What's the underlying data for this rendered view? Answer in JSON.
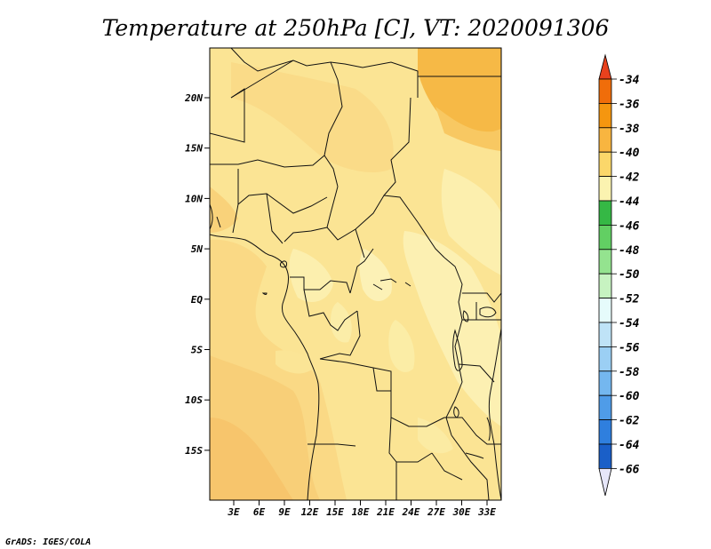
{
  "title": "Temperature at 250hPa [C], VT: 2020091306",
  "footer": "GrADS: IGES/COLA",
  "map": {
    "lat_labels": [
      "20N",
      "15N",
      "10N",
      "5N",
      "EQ",
      "5S",
      "10S",
      "15S"
    ],
    "lon_labels": [
      "3E",
      "6E",
      "9E",
      "12E",
      "15E",
      "18E",
      "21E",
      "24E",
      "27E",
      "30E",
      "33E"
    ]
  },
  "colorbar": {
    "levels": [
      "-34",
      "-36",
      "-38",
      "-40",
      "-42",
      "-44",
      "-46",
      "-48",
      "-50",
      "-52",
      "-54",
      "-56",
      "-58",
      "-60",
      "-62",
      "-64",
      "-66"
    ],
    "colors": [
      "#e8411d",
      "#f06d0a",
      "#f5960f",
      "#f8b540",
      "#fbd76a",
      "#fbf3b0",
      "#35b845",
      "#62cf63",
      "#94e38f",
      "#c7f3c1",
      "#e6fbfb",
      "#bfe3f7",
      "#9bcff4",
      "#74b7ef",
      "#4f9ce8",
      "#2f7fde",
      "#1a5fc8",
      "#0d3aa3",
      "#0a1a72",
      "#e6e6f9"
    ]
  }
}
